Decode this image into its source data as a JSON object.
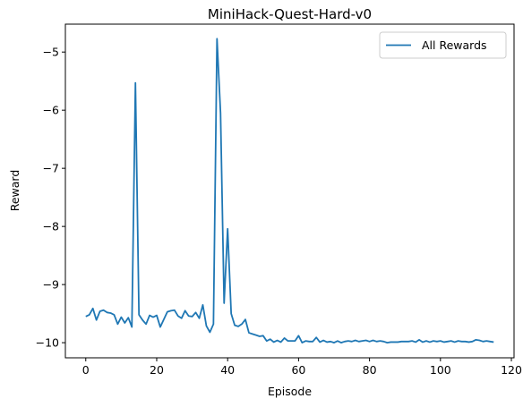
{
  "chart_data": {
    "type": "line",
    "title": "MiniHack-Quest-Hard-v0",
    "xlabel": "Episode",
    "ylabel": "Reward",
    "xlim": [
      -5.75,
      120.75
    ],
    "ylim": [
      -10.26,
      -4.52
    ],
    "xticks": [
      0,
      20,
      40,
      60,
      80,
      100,
      120
    ],
    "xtick_labels": [
      "0",
      "20",
      "40",
      "60",
      "80",
      "100",
      "120"
    ],
    "yticks": [
      -10,
      -9,
      -8,
      -7,
      -6,
      -5
    ],
    "ytick_labels": [
      "−10",
      "−9",
      "−8",
      "−7",
      "−6",
      "−5"
    ],
    "grid": false,
    "legend_position": "top-right",
    "colors": {
      "series": "#1f77b4"
    },
    "series": [
      {
        "name": "All Rewards",
        "x": [
          0,
          1,
          2,
          3,
          4,
          5,
          6,
          7,
          8,
          9,
          10,
          11,
          12,
          13,
          14,
          15,
          16,
          17,
          18,
          19,
          20,
          21,
          22,
          23,
          24,
          25,
          26,
          27,
          28,
          29,
          30,
          31,
          32,
          33,
          34,
          35,
          36,
          37,
          38,
          39,
          40,
          41,
          42,
          43,
          44,
          45,
          46,
          47,
          48,
          49,
          50,
          51,
          52,
          53,
          54,
          55,
          56,
          57,
          58,
          59,
          60,
          61,
          62,
          63,
          64,
          65,
          66,
          67,
          68,
          69,
          70,
          71,
          72,
          73,
          74,
          75,
          76,
          77,
          78,
          79,
          80,
          81,
          82,
          83,
          84,
          85,
          86,
          87,
          88,
          89,
          90,
          91,
          92,
          93,
          94,
          95,
          96,
          97,
          98,
          99,
          100,
          101,
          102,
          103,
          104,
          105,
          106,
          107,
          108,
          109,
          110,
          111,
          112,
          113,
          114,
          115
        ],
        "y": [
          -9.55,
          -9.52,
          -9.41,
          -9.61,
          -9.46,
          -9.44,
          -9.48,
          -9.49,
          -9.52,
          -9.68,
          -9.56,
          -9.66,
          -9.57,
          -9.73,
          -5.53,
          -9.52,
          -9.61,
          -9.68,
          -9.53,
          -9.56,
          -9.53,
          -9.73,
          -9.6,
          -9.47,
          -9.45,
          -9.44,
          -9.54,
          -9.58,
          -9.45,
          -9.54,
          -9.55,
          -9.48,
          -9.58,
          -9.35,
          -9.71,
          -9.82,
          -9.68,
          -4.77,
          -6.05,
          -9.32,
          -8.04,
          -9.5,
          -9.7,
          -9.72,
          -9.68,
          -9.6,
          -9.83,
          -9.85,
          -9.87,
          -9.89,
          -9.88,
          -9.97,
          -9.94,
          -9.99,
          -9.96,
          -9.99,
          -9.92,
          -9.97,
          -9.97,
          -9.97,
          -9.88,
          -10.0,
          -9.97,
          -9.98,
          -9.98,
          -9.91,
          -9.99,
          -9.96,
          -9.99,
          -9.98,
          -10.0,
          -9.97,
          -10.0,
          -9.98,
          -9.97,
          -9.98,
          -9.96,
          -9.98,
          -9.97,
          -9.96,
          -9.98,
          -9.96,
          -9.98,
          -9.97,
          -9.98,
          -10.0,
          -9.99,
          -9.99,
          -9.99,
          -9.98,
          -9.98,
          -9.98,
          -9.97,
          -9.99,
          -9.95,
          -9.99,
          -9.97,
          -9.99,
          -9.97,
          -9.98,
          -9.97,
          -9.99,
          -9.98,
          -9.97,
          -9.99,
          -9.97,
          -9.98,
          -9.98,
          -9.99,
          -9.98,
          -9.95,
          -9.96,
          -9.98,
          -9.97,
          -9.98,
          -9.99
        ]
      }
    ]
  }
}
